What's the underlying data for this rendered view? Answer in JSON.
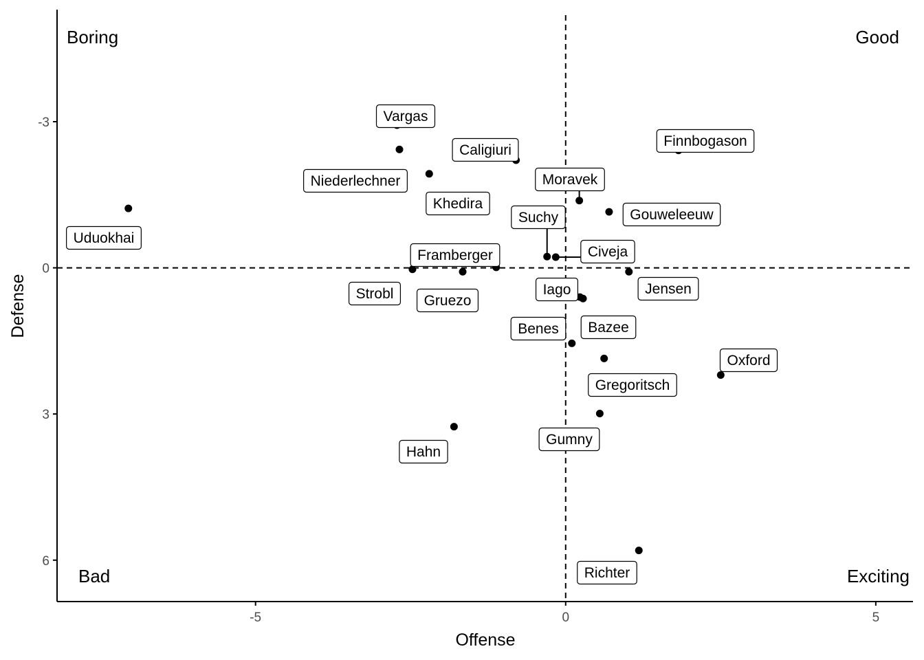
{
  "chart_data": {
    "type": "scatter",
    "xlabel": "Offense",
    "ylabel": "Defense",
    "xlim": [
      -8.2,
      5.6
    ],
    "ylim": [
      -5.3,
      6.85
    ],
    "y_reversed": true,
    "xticks": [
      -5,
      0,
      5
    ],
    "xtick_labels": [
      "-5",
      "0",
      "5"
    ],
    "yticks": [
      -3,
      0,
      3,
      6
    ],
    "ytick_labels": [
      "-3",
      "0",
      "3",
      "6"
    ],
    "reference_lines": {
      "x": 0,
      "y": 0,
      "style": "dashed"
    },
    "grid": false,
    "quadrant_labels": {
      "top_left": "Boring",
      "top_right": "Good",
      "bottom_left": "Bad",
      "bottom_right": "Exciting"
    },
    "points": [
      {
        "name": "Vargas",
        "x": -2.72,
        "y": -2.93
      },
      {
        "name": "Niederlechner",
        "x": -2.68,
        "y": -2.43
      },
      {
        "name": "Caligiuri",
        "x": -0.8,
        "y": -2.21
      },
      {
        "name": "Khedira",
        "x": -2.2,
        "y": -1.93
      },
      {
        "name": "Finnbogason",
        "x": 1.82,
        "y": -2.41
      },
      {
        "name": "Moravek",
        "x": 0.22,
        "y": -1.38
      },
      {
        "name": "Gouweleeuw",
        "x": 0.7,
        "y": -1.15
      },
      {
        "name": "Uduokhai",
        "x": -7.05,
        "y": -1.22
      },
      {
        "name": "Suchy",
        "x": -0.3,
        "y": -0.23
      },
      {
        "name": "Civeja",
        "x": -0.16,
        "y": -0.22
      },
      {
        "name": "Framberger",
        "x": -1.12,
        "y": -0.01
      },
      {
        "name": "Strobl",
        "x": -2.47,
        "y": 0.03
      },
      {
        "name": "Gruezo",
        "x": -1.66,
        "y": 0.08
      },
      {
        "name": "Jensen",
        "x": 1.02,
        "y": 0.08
      },
      {
        "name": "Iago",
        "x": 0.23,
        "y": 0.6
      },
      {
        "name": "Bazee",
        "x": 0.28,
        "y": 0.63
      },
      {
        "name": "Benes",
        "x": 0.1,
        "y": 1.55
      },
      {
        "name": "Gregoritsch",
        "x": 0.62,
        "y": 1.86
      },
      {
        "name": "Oxford",
        "x": 2.5,
        "y": 2.2
      },
      {
        "name": "Gumny",
        "x": 0.55,
        "y": 2.99
      },
      {
        "name": "Hahn",
        "x": -1.8,
        "y": 3.26
      },
      {
        "name": "Richter",
        "x": 1.18,
        "y": 5.8
      }
    ]
  }
}
